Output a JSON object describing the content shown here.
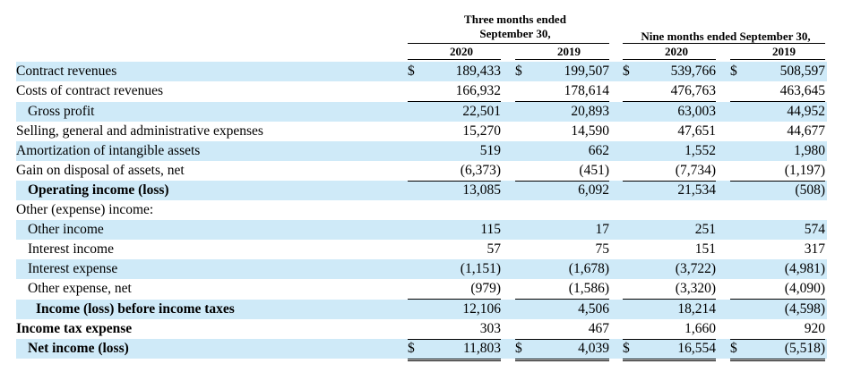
{
  "header": {
    "three_months": [
      "Three months ended",
      "September 30,"
    ],
    "nine_months": "Nine months ended September 30,",
    "years": [
      "2020",
      "2019",
      "2020",
      "2019"
    ]
  },
  "currency_symbol": "$",
  "rows": [
    {
      "label": "Contract revenues",
      "values": [
        "189,433",
        "199,507",
        "539,766",
        "508,597"
      ]
    },
    {
      "label": "Costs of contract revenues",
      "values": [
        "166,932",
        "178,614",
        "476,763",
        "463,645"
      ]
    },
    {
      "label": "Gross profit",
      "values": [
        "22,501",
        "20,893",
        "63,003",
        "44,952"
      ]
    },
    {
      "label": "Selling, general and administrative expenses",
      "values": [
        "15,270",
        "14,590",
        "47,651",
        "44,677"
      ]
    },
    {
      "label": "Amortization of intangible assets",
      "values": [
        "519",
        "662",
        "1,552",
        "1,980"
      ]
    },
    {
      "label": "Gain on disposal of assets, net",
      "values": [
        "(6,373)",
        "(451)",
        "(7,734)",
        "(1,197)"
      ]
    },
    {
      "label": "Operating income (loss)",
      "values": [
        "13,085",
        "6,092",
        "21,534",
        "(508)"
      ]
    },
    {
      "label": "Other (expense) income:",
      "values": [
        "",
        "",
        "",
        ""
      ]
    },
    {
      "label": "Other income",
      "values": [
        "115",
        "17",
        "251",
        "574"
      ]
    },
    {
      "label": "Interest income",
      "values": [
        "57",
        "75",
        "151",
        "317"
      ]
    },
    {
      "label": "Interest expense",
      "values": [
        "(1,151)",
        "(1,678)",
        "(3,722)",
        "(4,981)"
      ]
    },
    {
      "label": "Other expense, net",
      "values": [
        "(979)",
        "(1,586)",
        "(3,320)",
        "(4,090)"
      ]
    },
    {
      "label": "Income (loss) before income taxes",
      "values": [
        "12,106",
        "4,506",
        "18,214",
        "(4,598)"
      ]
    },
    {
      "label": "Income tax expense",
      "values": [
        "303",
        "467",
        "1,660",
        "920"
      ]
    },
    {
      "label": "Net income (loss)",
      "values": [
        "11,803",
        "4,039",
        "16,554",
        "(5,518)"
      ]
    }
  ]
}
